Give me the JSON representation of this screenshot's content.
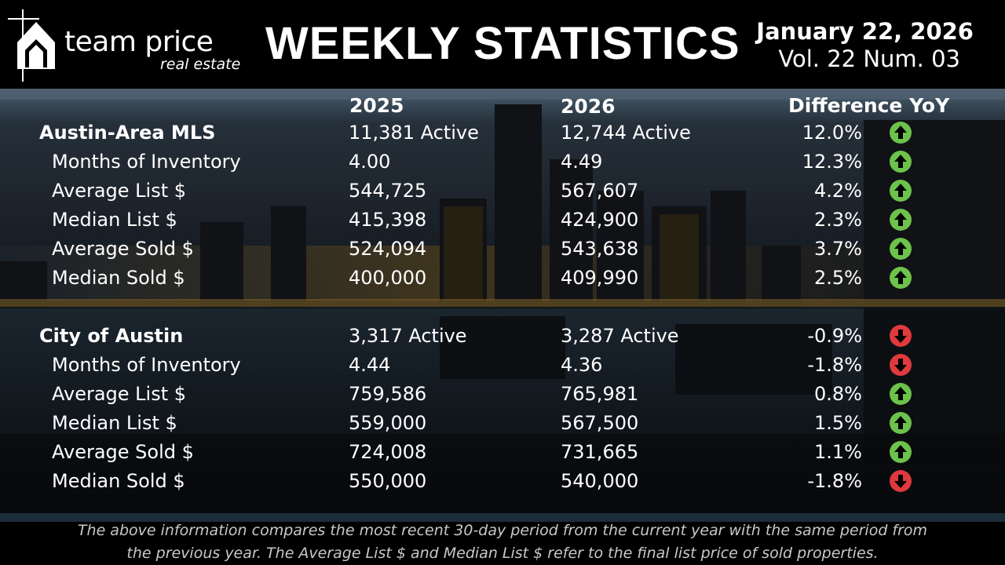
{
  "header": {
    "brand_name": "team price",
    "brand_sub": "real estate",
    "title": "WEEKLY STATISTICS",
    "date": "January 22, 2026",
    "volume": "Vol. 22 Num. 03"
  },
  "columns": {
    "year1": "2025",
    "year2": "2026",
    "diff": "Difference YoY"
  },
  "sections": [
    {
      "name": "Austin-Area MLS",
      "rows": [
        {
          "label": "Austin-Area MLS",
          "v1": "11,381  Active",
          "v2": "12,744  Active",
          "pct": "12.0%",
          "dir": "up"
        },
        {
          "label": "Months of Inventory",
          "v1": "4.00",
          "v2": "4.49",
          "pct": "12.3%",
          "dir": "up"
        },
        {
          "label": "Average List $",
          "v1": "544,725",
          "v2": "567,607",
          "pct": "4.2%",
          "dir": "up"
        },
        {
          "label": "Median List $",
          "v1": "415,398",
          "v2": "424,900",
          "pct": "2.3%",
          "dir": "up"
        },
        {
          "label": "Average Sold $",
          "v1": "524,094",
          "v2": "543,638",
          "pct": "3.7%",
          "dir": "up"
        },
        {
          "label": "Median Sold $",
          "v1": "400,000",
          "v2": "409,990",
          "pct": "2.5%",
          "dir": "up"
        }
      ]
    },
    {
      "name": "City of Austin",
      "rows": [
        {
          "label": "City of Austin",
          "v1": "3,317  Active",
          "v2": "3,287  Active",
          "pct": "-0.9%",
          "dir": "down"
        },
        {
          "label": "Months of Inventory",
          "v1": "4.44",
          "v2": "4.36",
          "pct": "-1.8%",
          "dir": "down"
        },
        {
          "label": "Average List $",
          "v1": "759,586",
          "v2": "765,981",
          "pct": "0.8%",
          "dir": "up"
        },
        {
          "label": "Median List $",
          "v1": "559,000",
          "v2": "567,500",
          "pct": "1.5%",
          "dir": "up"
        },
        {
          "label": "Average Sold $",
          "v1": "724,008",
          "v2": "731,665",
          "pct": "1.1%",
          "dir": "up"
        },
        {
          "label": "Median Sold $",
          "v1": "550,000",
          "v2": "540,000",
          "pct": "-1.8%",
          "dir": "down"
        }
      ]
    }
  ],
  "footnote": {
    "line1": "The above information compares the most recent 30-day period from the current year with the same period from",
    "line2": "the previous year. The Average List $ and Median List $ refer to the final list price of sold properties."
  },
  "colors": {
    "up": "#6cc24a",
    "down": "#e0393e"
  }
}
